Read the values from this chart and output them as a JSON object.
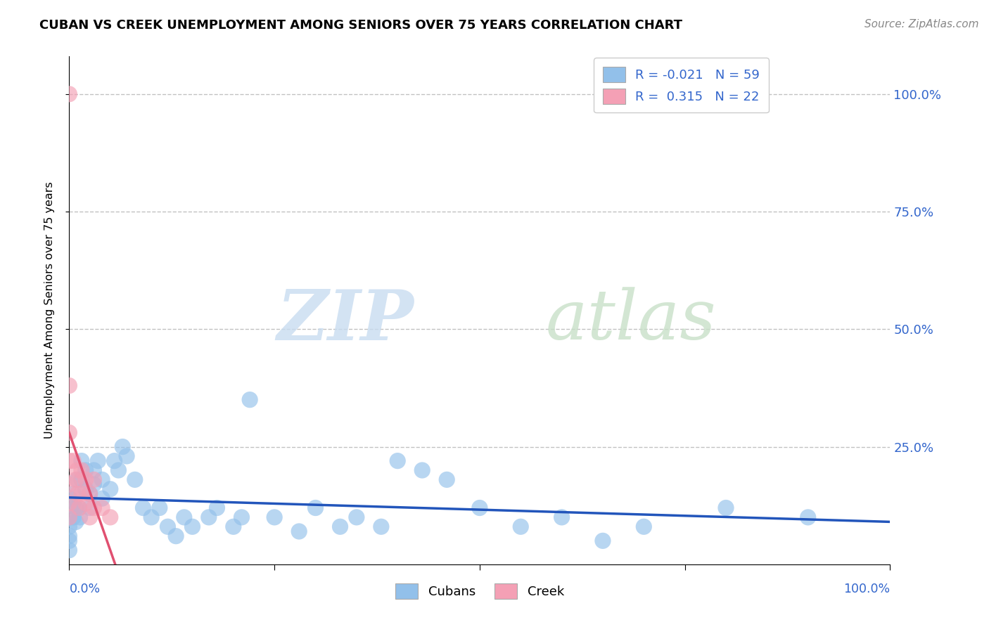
{
  "title": "CUBAN VS CREEK UNEMPLOYMENT AMONG SENIORS OVER 75 YEARS CORRELATION CHART",
  "source": "Source: ZipAtlas.com",
  "ylabel": "Unemployment Among Seniors over 75 years",
  "ytick_labels": [
    "100.0%",
    "75.0%",
    "50.0%",
    "25.0%"
  ],
  "ytick_values": [
    1.0,
    0.75,
    0.5,
    0.25
  ],
  "xlim": [
    0.0,
    1.0
  ],
  "ylim": [
    0.0,
    1.08
  ],
  "legend_r_cuban": "-0.021",
  "legend_n_cuban": "59",
  "legend_r_creek": "0.315",
  "legend_n_creek": "22",
  "cuban_color": "#92C0EA",
  "creek_color": "#F4A0B5",
  "cuban_trend_color": "#2255BB",
  "creek_trend_color": "#E05070",
  "grid_color": "#BBBBBB",
  "background_color": "#FFFFFF",
  "cuban_x": [
    0.0,
    0.0,
    0.0,
    0.0,
    0.0,
    0.0,
    0.005,
    0.005,
    0.005,
    0.008,
    0.008,
    0.01,
    0.012,
    0.013,
    0.015,
    0.015,
    0.02,
    0.02,
    0.025,
    0.025,
    0.03,
    0.03,
    0.035,
    0.04,
    0.04,
    0.05,
    0.055,
    0.06,
    0.065,
    0.07,
    0.08,
    0.09,
    0.1,
    0.11,
    0.12,
    0.13,
    0.14,
    0.15,
    0.17,
    0.18,
    0.2,
    0.21,
    0.22,
    0.25,
    0.28,
    0.3,
    0.33,
    0.35,
    0.38,
    0.4,
    0.43,
    0.46,
    0.5,
    0.55,
    0.6,
    0.65,
    0.7,
    0.8,
    0.9
  ],
  "cuban_y": [
    0.14,
    0.1,
    0.08,
    0.06,
    0.05,
    0.03,
    0.15,
    0.13,
    0.1,
    0.12,
    0.09,
    0.18,
    0.12,
    0.1,
    0.22,
    0.18,
    0.2,
    0.16,
    0.15,
    0.12,
    0.2,
    0.17,
    0.22,
    0.18,
    0.14,
    0.16,
    0.22,
    0.2,
    0.25,
    0.23,
    0.18,
    0.12,
    0.1,
    0.12,
    0.08,
    0.06,
    0.1,
    0.08,
    0.1,
    0.12,
    0.08,
    0.1,
    0.35,
    0.1,
    0.07,
    0.12,
    0.08,
    0.1,
    0.08,
    0.22,
    0.2,
    0.18,
    0.12,
    0.08,
    0.1,
    0.05,
    0.08,
    0.12,
    0.1
  ],
  "creek_x": [
    0.0,
    0.0,
    0.0,
    0.0,
    0.0,
    0.0,
    0.0,
    0.005,
    0.008,
    0.01,
    0.01,
    0.012,
    0.015,
    0.015,
    0.02,
    0.02,
    0.025,
    0.025,
    0.03,
    0.03,
    0.04,
    0.05
  ],
  "creek_y": [
    1.0,
    0.38,
    0.28,
    0.22,
    0.17,
    0.13,
    0.1,
    0.22,
    0.18,
    0.2,
    0.15,
    0.12,
    0.2,
    0.15,
    0.18,
    0.13,
    0.15,
    0.1,
    0.18,
    0.12,
    0.12,
    0.1
  ]
}
